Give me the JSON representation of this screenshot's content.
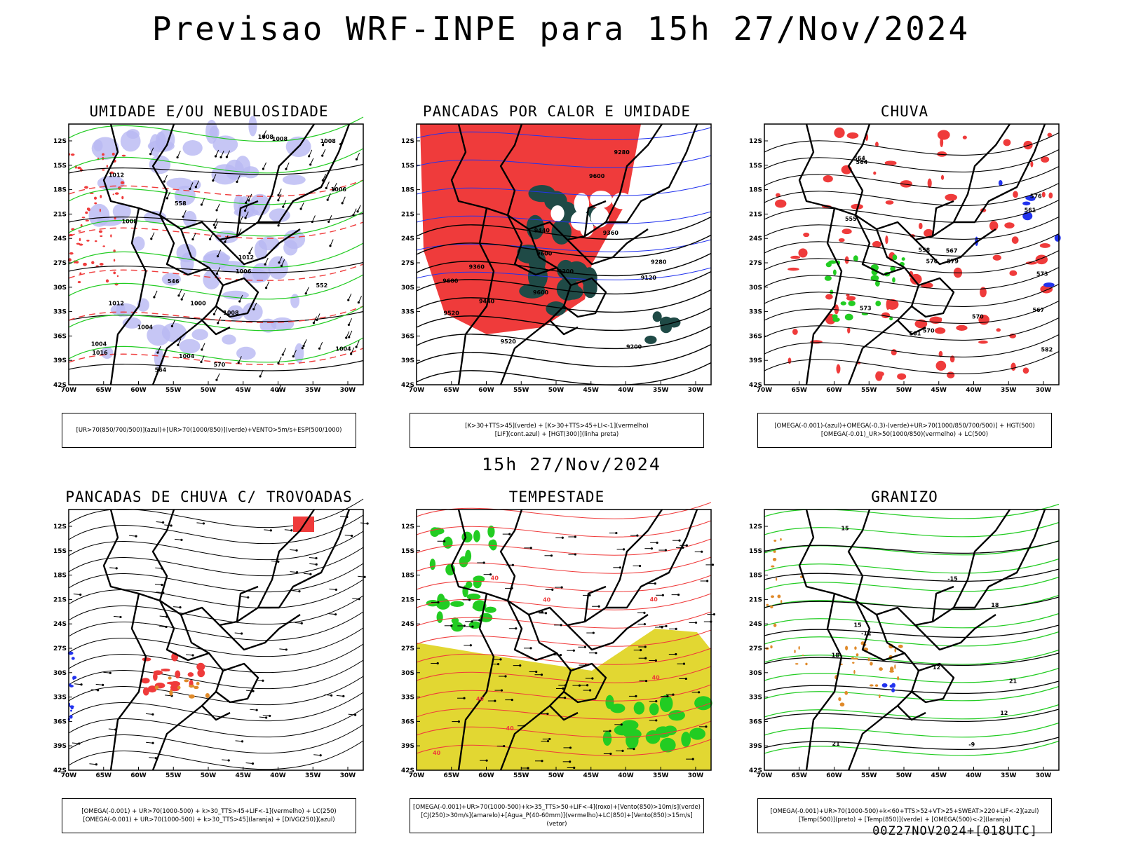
{
  "title": "Previsao WRF-INPE  para 15h 27/Nov/2024",
  "subtitle": "15h 27/Nov/2024",
  "footer": "00Z27NOV2024+[018UTC]",
  "axes": {
    "lat_labels": [
      "12S",
      "15S",
      "18S",
      "21S",
      "24S",
      "27S",
      "30S",
      "33S",
      "36S",
      "39S",
      "42S"
    ],
    "lon_labels": [
      "70W",
      "65W",
      "60W",
      "55W",
      "50W",
      "45W",
      "40W",
      "35W",
      "30W"
    ]
  },
  "colors": {
    "red": "#ef3b3b",
    "green": "#22cc22",
    "blue": "#2233ee",
    "lavender": "#b8b8f2",
    "yellow": "#e2d732",
    "darkteal": "#1f4a46",
    "orange": "#e08a2a",
    "black": "#000000"
  },
  "panels": [
    {
      "id": "umidade",
      "title": "UMIDADE E/OU NEBULOSIDADE",
      "legend": [
        "[UR>70(850/700/500)](azul)+[UR>70(1000/850)](verde)+VENTO>5m/s+ESP(500/1000)"
      ],
      "labels": [
        "1008",
        "1006",
        "1008",
        "1012",
        "1016",
        "1004",
        "1000",
        "1008",
        "1004",
        "1008",
        "1006",
        "1012",
        "1008",
        "1004",
        "570",
        "564",
        "558",
        "552",
        "546",
        "1004",
        "1012"
      ]
    },
    {
      "id": "pancadas-calor",
      "title": "PANCADAS POR CALOR E UMIDADE",
      "legend": [
        "[K>30+TTS>45](verde) + [K>30+TTS>45+LI<-1](vermelho)",
        "[LIF](cont.azul) + [HGT(300)](linha preta)"
      ],
      "labels": [
        "9600",
        "9600",
        "9600",
        "9520",
        "9440",
        "9360",
        "9280",
        "9200",
        "9120",
        "9520",
        "9440",
        "9360",
        "9280",
        "9200",
        "9600"
      ]
    },
    {
      "id": "chuva",
      "title": "CHUVA",
      "legend": [
        "[OMEGA(-0.001)-(azul)+OMEGA(-0.3)-(verde)+UR>70(1000/850/700/500)] + HGT(500)",
        "[OMEGA(-0.01)_UR>50(1000/850)(vermelho) + LC(500)"
      ],
      "labels": [
        "582",
        "579",
        "576",
        "573",
        "570",
        "567",
        "564",
        "561",
        "558",
        "555",
        "576",
        "573",
        "570",
        "567",
        "564",
        "561"
      ]
    },
    {
      "id": "trovoadas",
      "title": "PANCADAS DE CHUVA C/ TROVOADAS",
      "legend": [
        "[OMEGA(-0.001) + UR>70(1000-500) + k>30_TTS>45+LIF<-1](vermelho) + LC(250)",
        "[OMEGA(-0.001) + UR>70(1000-500) + k>30_TTS>45](laranja) + [DIVG(250)](azul)"
      ],
      "labels": []
    },
    {
      "id": "tempestade",
      "title": "TEMPESTADE",
      "legend": [
        "[OMEGA(-0.001)+UR>70(1000-500)+k>35_TTS>50+LIF<-4](roxo)+[Vento(850)>10m/s](verde)",
        "[CJ(250)>30m/s](amarelo)+[Agua_P(40-60mm)](vermelho)+LC(850)+[Vento(850)>15m/s](vetor)"
      ],
      "labels": [
        "40",
        "40",
        "40",
        "40",
        "40",
        "40",
        "40"
      ]
    },
    {
      "id": "granizo",
      "title": "GRANIZO",
      "legend": [
        "[OMEGA(-0.001)+UR>70(1000-500)+k<60+TTS>52+VT>25+SWEAT>220+LIF<-2](azul)",
        "[Temp(500)](preto) + [Temp(850)](verde) + [OMEGA(500)<-2](laranja)"
      ],
      "labels": [
        "21",
        "18",
        "15",
        "12",
        "18",
        "21",
        "15",
        "12",
        "-9",
        "-12",
        "-15"
      ]
    }
  ]
}
